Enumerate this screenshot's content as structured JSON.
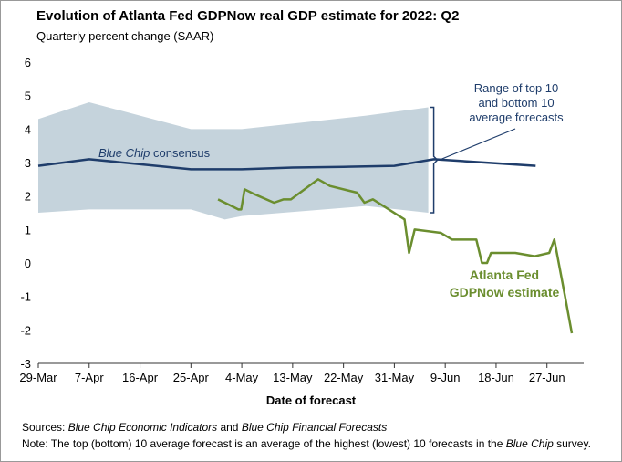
{
  "chart_data": {
    "type": "line",
    "title": "Evolution of Atlanta Fed GDPNow real GDP estimate for 2022: Q2",
    "subtitle": "Quarterly percent change (SAAR)",
    "x_label": "Date of forecast",
    "xlim": [
      0,
      96.5
    ],
    "xticks": [
      {
        "value": 0,
        "label": "29-Mar"
      },
      {
        "value": 9,
        "label": "7-Apr"
      },
      {
        "value": 18,
        "label": "16-Apr"
      },
      {
        "value": 27,
        "label": "25-Apr"
      },
      {
        "value": 36,
        "label": "4-May"
      },
      {
        "value": 45,
        "label": "13-May"
      },
      {
        "value": 54,
        "label": "22-May"
      },
      {
        "value": 63,
        "label": "31-May"
      },
      {
        "value": 72,
        "label": "9-Jun"
      },
      {
        "value": 81,
        "label": "18-Jun"
      },
      {
        "value": 90,
        "label": "27-Jun"
      }
    ],
    "ylim": [
      -3,
      6
    ],
    "yticks": [
      -3,
      -2,
      -1,
      0,
      1,
      2,
      3,
      4,
      5,
      6
    ],
    "band": {
      "color": "#c5d3dc",
      "label": [
        "Range of top 10",
        "and bottom 10",
        "average forecasts"
      ],
      "label_color": "#1f3d6b",
      "x": [
        0,
        9,
        27,
        33,
        36,
        58,
        69
      ],
      "upper": [
        4.3,
        4.8,
        4.0,
        4.0,
        4.0,
        4.4,
        4.65
      ],
      "lower": [
        1.5,
        1.6,
        1.6,
        1.3,
        1.4,
        1.7,
        1.5
      ]
    },
    "series": [
      {
        "label": [
          "Blue Chip",
          " consensus"
        ],
        "color": "#1f3d6b",
        "x": [
          0,
          9,
          27,
          36,
          45,
          54,
          63,
          70,
          79,
          88
        ],
        "values": [
          2.9,
          3.1,
          2.8,
          2.8,
          2.85,
          2.87,
          2.9,
          3.1,
          3.0,
          2.9
        ]
      },
      {
        "label": [
          "Atlanta Fed",
          "GDPNow estimate"
        ],
        "color": "#6b8e2f",
        "x": [
          31.8,
          35.4,
          35.9,
          36.5,
          38.3,
          41.7,
          43.4,
          44.7,
          49.5,
          51.6,
          56.4,
          57.7,
          59.2,
          64.8,
          65.6,
          66.6,
          71.2,
          73.2,
          77.5,
          78.5,
          79.4,
          80.1,
          84.4,
          87.8,
          90.4,
          91.3,
          93.2,
          94.4
        ],
        "values": [
          1.9,
          1.6,
          1.6,
          2.2,
          2.05,
          1.8,
          1.9,
          1.9,
          2.5,
          2.3,
          2.1,
          1.8,
          1.9,
          1.3,
          0.3,
          1.0,
          0.9,
          0.7,
          0.7,
          0.0,
          0.0,
          0.3,
          0.3,
          0.2,
          0.3,
          0.7,
          -1.0,
          -2.1
        ]
      }
    ]
  },
  "footer": {
    "sources": [
      "Sources: ",
      "Blue Chip Economic Indicators",
      " and ",
      "Blue Chip Financial Forecasts"
    ],
    "note": [
      "Note:",
      " The top (bottom) 10 average forecast is an average of the highest (lowest) 10 forecasts in the ",
      "Blue Chip",
      " survey."
    ]
  }
}
